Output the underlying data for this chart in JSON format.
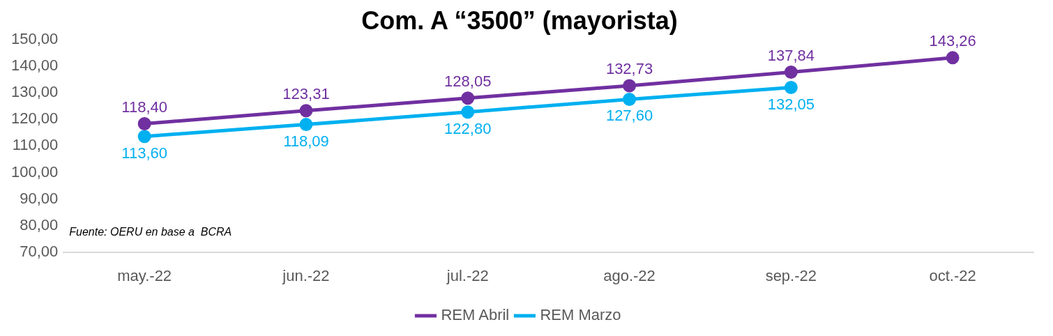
{
  "chart_data": {
    "type": "line",
    "title": "Com. A “3500” (mayorista)",
    "categories": [
      "may.-22",
      "jun.-22",
      "jul.-22",
      "ago.-22",
      "sep.-22",
      "oct.-22"
    ],
    "series": [
      {
        "name": "REM Abril",
        "color": "#7030a0",
        "values": [
          118.4,
          123.31,
          128.05,
          132.73,
          137.84,
          143.26
        ],
        "value_labels": [
          "118,40",
          "123,31",
          "128,05",
          "132,73",
          "137,84",
          "143,26"
        ]
      },
      {
        "name": "REM Marzo",
        "color": "#00b0f0",
        "values": [
          113.6,
          118.09,
          122.8,
          127.6,
          132.05,
          null
        ],
        "value_labels": [
          "113,60",
          "118,09",
          "122,80",
          "127,60",
          "132,05",
          null
        ]
      }
    ],
    "ylim": [
      70,
      150
    ],
    "yticks": [
      {
        "value": 70,
        "label": "70,00"
      },
      {
        "value": 80,
        "label": "80,00"
      },
      {
        "value": 90,
        "label": "90,00"
      },
      {
        "value": 100,
        "label": "100,00"
      },
      {
        "value": 110,
        "label": "110,00"
      },
      {
        "value": 120,
        "label": "120,00"
      },
      {
        "value": 130,
        "label": "130,00"
      },
      {
        "value": 140,
        "label": "140,00"
      },
      {
        "value": 150,
        "label": "150,00"
      }
    ],
    "grid": false,
    "legend": "bottom",
    "marker": "circle",
    "line_style": "solid",
    "annotations": [
      "Fuente: OERU en base a  BCRA"
    ]
  }
}
